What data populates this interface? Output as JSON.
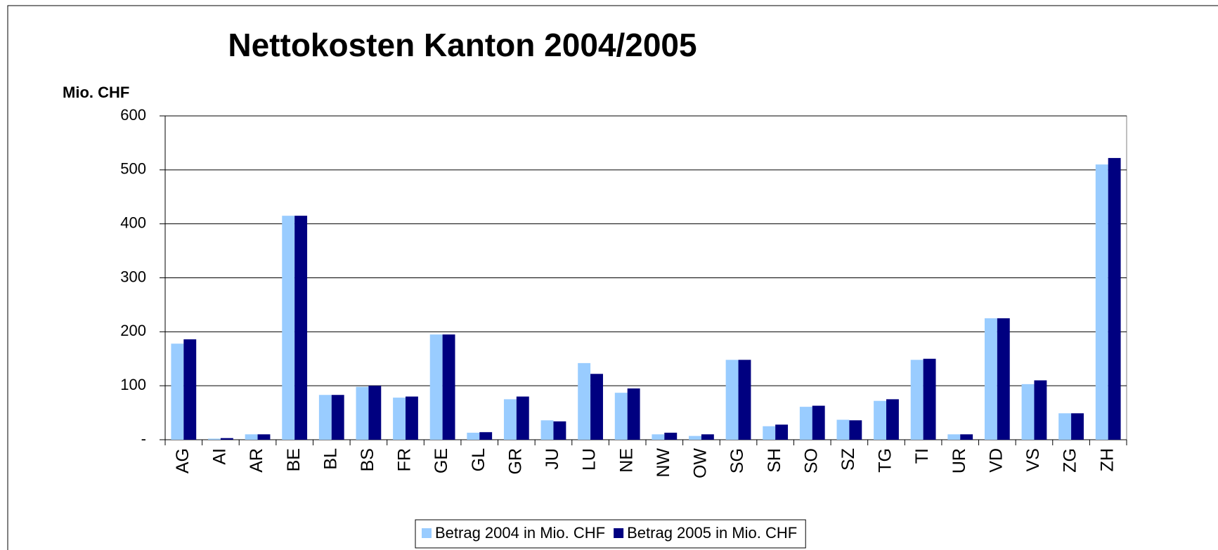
{
  "chart_data": {
    "type": "bar",
    "title": "Nettokosten Kanton 2004/2005",
    "y_label": "Mio. CHF",
    "categories": [
      "AG",
      "AI",
      "AR",
      "BE",
      "BL",
      "BS",
      "FR",
      "GE",
      "GL",
      "GR",
      "JU",
      "LU",
      "NE",
      "NW",
      "OW",
      "SG",
      "SH",
      "SO",
      "SZ",
      "TG",
      "TI",
      "UR",
      "VD",
      "VS",
      "ZG",
      "ZH"
    ],
    "series": [
      {
        "name": "Betrag 2004 in Mio. CHF",
        "color": "#99ccff",
        "values": [
          178,
          2,
          10,
          415,
          83,
          98,
          78,
          195,
          13,
          75,
          36,
          142,
          87,
          10,
          7,
          148,
          25,
          61,
          37,
          72,
          148,
          10,
          225,
          103,
          49,
          510
        ]
      },
      {
        "name": "Betrag 2005 in Mio. CHF",
        "color": "#000080",
        "values": [
          186,
          3,
          10,
          415,
          83,
          100,
          80,
          195,
          14,
          80,
          34,
          122,
          95,
          13,
          10,
          148,
          28,
          63,
          36,
          75,
          150,
          10,
          225,
          110,
          49,
          522
        ]
      }
    ],
    "ylim": [
      0,
      600
    ],
    "yticks": [
      {
        "value": 0,
        "label": "-"
      },
      100,
      200,
      300,
      400,
      500,
      600
    ],
    "grid": true,
    "legend": "bottom"
  }
}
